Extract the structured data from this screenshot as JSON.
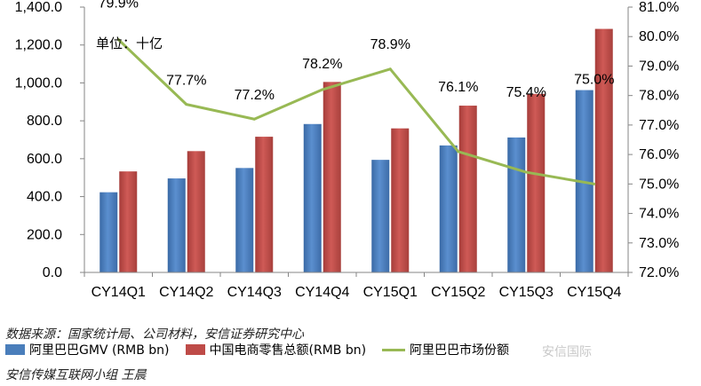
{
  "chart_data": {
    "type": "bar",
    "categories": [
      "CY14Q1",
      "CY14Q2",
      "CY14Q3",
      "CY14Q4",
      "CY15Q1",
      "CY15Q2",
      "CY15Q3",
      "CY15Q4"
    ],
    "series": [
      {
        "name": "阿里巴巴GMV (RMB bn)",
        "type": "bar",
        "axis": "left",
        "color": "#4a7ebb",
        "values": [
          423,
          496,
          551,
          783,
          594,
          670,
          712,
          962
        ]
      },
      {
        "name": "中国电商零售总额(RMB bn)",
        "type": "bar",
        "axis": "left",
        "color": "#be4b48",
        "values": [
          533,
          640,
          716,
          1005,
          760,
          880,
          942,
          1285
        ]
      },
      {
        "name": "阿里巴巴市场份额",
        "type": "line",
        "axis": "right",
        "color": "#98b954",
        "values": [
          79.9,
          77.7,
          77.2,
          78.2,
          78.9,
          76.1,
          75.4,
          75.0
        ],
        "labels": [
          "79.9%",
          "77.7%",
          "77.2%",
          "78.2%",
          "78.9%",
          "76.1%",
          "75.4%",
          "75.0%"
        ]
      }
    ],
    "yleft": {
      "ylim": [
        0,
        1400
      ],
      "ticks": [
        "0.0",
        "200.0",
        "400.0",
        "600.0",
        "800.0",
        "1,000.0",
        "1,200.0",
        "1,400.0"
      ]
    },
    "yright": {
      "ylim": [
        72,
        81
      ],
      "ticks": [
        "72.0%",
        "73.0%",
        "74.0%",
        "75.0%",
        "76.0%",
        "77.0%",
        "78.0%",
        "79.0%",
        "80.0%",
        "81.0%"
      ]
    },
    "grid": false,
    "legend_position": "bottom",
    "annotation": "单位：十亿"
  },
  "footer": {
    "source": "数据来源：国家统计局、公司材料，安信证券研究中心",
    "author": "安信传媒互联网小组 王晨",
    "watermark": "安信国际"
  }
}
